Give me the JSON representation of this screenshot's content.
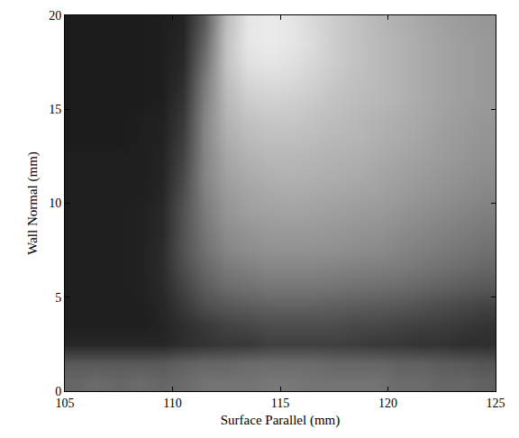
{
  "chart_data": {
    "type": "heatmap",
    "x_label": "Surface Parallel (mm)",
    "y_label": "Wall Normal (mm)",
    "xlim": [
      105,
      125
    ],
    "ylim": [
      0,
      20
    ],
    "xticks": [
      105,
      110,
      115,
      120,
      125
    ],
    "yticks": [
      0,
      5,
      10,
      15,
      20
    ],
    "zlim": [
      0,
      100
    ],
    "x": [
      105.5,
      106.5,
      107.5,
      108.5,
      109.5,
      110.5,
      111.5,
      112.5,
      113.5,
      114.5,
      115.5,
      116.5,
      117.5,
      118.5,
      119.5,
      120.5,
      121.5,
      122.5,
      123.5,
      124.5
    ],
    "y": [
      0.5,
      1.5,
      2.5,
      3.5,
      4.5,
      5.5,
      6.5,
      7.5,
      8.5,
      9.5,
      10.5,
      11.5,
      12.5,
      13.5,
      14.5,
      15.5,
      16.5,
      17.5,
      18.5,
      19.5
    ],
    "z": [
      [
        40,
        42,
        40,
        42,
        40,
        42,
        45,
        45,
        45,
        47,
        47,
        45,
        45,
        45,
        45,
        42,
        42,
        40,
        40,
        38
      ],
      [
        35,
        35,
        35,
        35,
        35,
        38,
        40,
        40,
        42,
        42,
        42,
        42,
        40,
        40,
        40,
        38,
        38,
        36,
        35,
        33
      ],
      [
        15,
        15,
        15,
        15,
        15,
        18,
        20,
        22,
        22,
        25,
        25,
        25,
        25,
        24,
        22,
        22,
        20,
        20,
        18,
        18
      ],
      [
        12,
        12,
        12,
        12,
        14,
        18,
        22,
        26,
        28,
        30,
        30,
        30,
        30,
        28,
        28,
        26,
        25,
        24,
        22,
        20
      ],
      [
        12,
        12,
        12,
        12,
        15,
        22,
        30,
        34,
        36,
        38,
        38,
        38,
        37,
        36,
        35,
        34,
        32,
        30,
        28,
        26
      ],
      [
        12,
        12,
        12,
        13,
        16,
        26,
        36,
        42,
        44,
        46,
        46,
        46,
        45,
        44,
        43,
        42,
        40,
        38,
        36,
        34
      ],
      [
        12,
        12,
        12,
        13,
        17,
        30,
        40,
        47,
        50,
        52,
        52,
        52,
        51,
        50,
        49,
        48,
        46,
        44,
        42,
        40
      ],
      [
        12,
        12,
        12,
        13,
        17,
        32,
        44,
        52,
        55,
        57,
        57,
        57,
        56,
        55,
        54,
        52,
        50,
        48,
        46,
        44
      ],
      [
        12,
        12,
        12,
        13,
        16,
        32,
        46,
        55,
        58,
        60,
        60,
        60,
        59,
        58,
        57,
        55,
        53,
        51,
        49,
        47
      ],
      [
        12,
        12,
        12,
        13,
        16,
        32,
        48,
        58,
        62,
        63,
        64,
        63,
        62,
        61,
        60,
        58,
        56,
        54,
        52,
        50
      ],
      [
        12,
        12,
        12,
        12,
        15,
        30,
        50,
        60,
        64,
        66,
        67,
        66,
        65,
        64,
        63,
        61,
        59,
        57,
        55,
        53
      ],
      [
        12,
        12,
        12,
        12,
        14,
        28,
        52,
        63,
        67,
        69,
        70,
        69,
        68,
        67,
        65,
        63,
        61,
        59,
        57,
        55
      ],
      [
        12,
        12,
        12,
        12,
        14,
        26,
        52,
        65,
        70,
        72,
        72,
        71,
        70,
        69,
        67,
        65,
        63,
        61,
        59,
        57
      ],
      [
        11,
        11,
        11,
        12,
        13,
        24,
        52,
        68,
        73,
        75,
        75,
        74,
        72,
        71,
        69,
        67,
        65,
        62,
        60,
        58
      ],
      [
        11,
        11,
        11,
        12,
        13,
        22,
        52,
        70,
        76,
        78,
        78,
        76,
        74,
        72,
        70,
        68,
        66,
        63,
        61,
        59
      ],
      [
        11,
        11,
        11,
        11,
        12,
        20,
        50,
        72,
        80,
        82,
        81,
        79,
        76,
        74,
        72,
        70,
        67,
        64,
        62,
        60
      ],
      [
        11,
        11,
        11,
        11,
        12,
        18,
        48,
        74,
        84,
        86,
        85,
        82,
        78,
        75,
        73,
        70,
        67,
        64,
        62,
        60
      ],
      [
        11,
        11,
        11,
        11,
        12,
        16,
        44,
        76,
        88,
        90,
        88,
        84,
        80,
        76,
        73,
        70,
        67,
        64,
        62,
        60
      ],
      [
        11,
        11,
        11,
        11,
        12,
        15,
        40,
        76,
        90,
        92,
        90,
        86,
        80,
        76,
        73,
        70,
        67,
        64,
        62,
        60
      ],
      [
        11,
        11,
        11,
        11,
        12,
        14,
        36,
        74,
        90,
        92,
        90,
        85,
        80,
        76,
        72,
        69,
        66,
        63,
        61,
        59
      ]
    ]
  }
}
